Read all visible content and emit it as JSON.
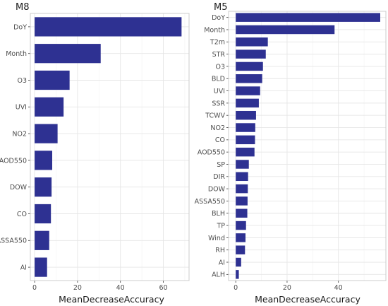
{
  "chart_data": [
    {
      "type": "bar",
      "orientation": "horizontal",
      "title": "M8",
      "xlabel": "MeanDecreaseAccuracy",
      "ylabel": "",
      "xlim": [
        -2,
        72
      ],
      "xticks": [
        0,
        20,
        40,
        60
      ],
      "grid": true,
      "color": "#2e3192",
      "categories": [
        "DoY",
        "Month",
        "O3",
        "UVI",
        "NO2",
        "AOD550",
        "DOW",
        "CO",
        "ASSA550",
        "AI"
      ],
      "values": [
        68.5,
        30.8,
        16.3,
        13.5,
        10.7,
        8.2,
        7.9,
        7.6,
        6.8,
        5.8
      ]
    },
    {
      "type": "bar",
      "orientation": "horizontal",
      "title": "M5",
      "xlabel": "MeanDecreaseAccuracy",
      "ylabel": "",
      "xlim": [
        -2.8,
        58.5
      ],
      "xticks": [
        0,
        20,
        40
      ],
      "grid": true,
      "color": "#2e3192",
      "categories": [
        "DoY",
        "Month",
        "T2m",
        "STR",
        "O3",
        "BLD",
        "UVI",
        "SSR",
        "TCWV",
        "NO2",
        "CO",
        "AOD550",
        "SP",
        "DIR",
        "DOW",
        "ASSA550",
        "BLH",
        "TP",
        "Wind",
        "RH",
        "AI",
        "ALH"
      ],
      "values": [
        56.3,
        38.5,
        12.5,
        11.7,
        10.6,
        10.3,
        9.5,
        9.0,
        7.9,
        7.6,
        7.5,
        7.3,
        5.1,
        4.8,
        4.7,
        4.6,
        4.5,
        4.0,
        3.8,
        3.6,
        2.1,
        1.2
      ]
    }
  ]
}
